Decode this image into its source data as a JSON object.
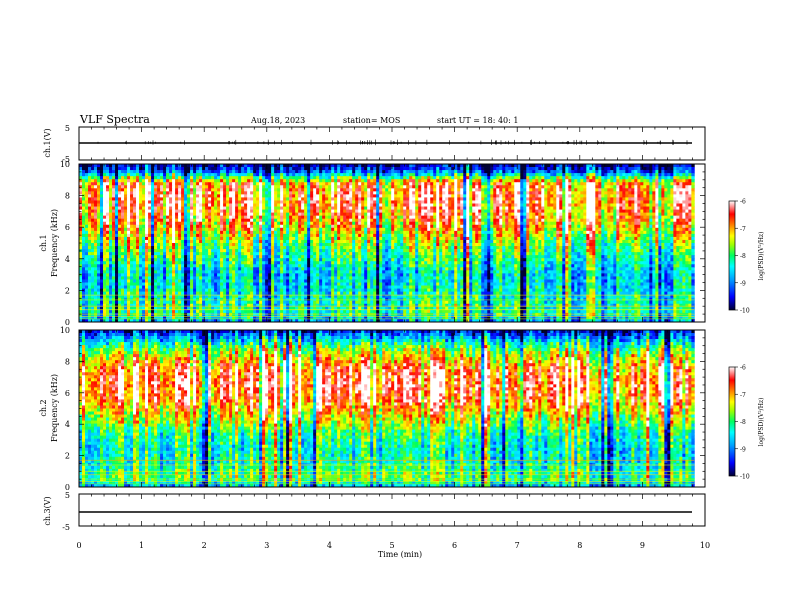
{
  "header": {
    "title": "VLF Spectra",
    "date": "Aug.18, 2023",
    "station": "station= MOS",
    "start": "start  UT  =   18: 40: 1"
  },
  "chart_data": [
    {
      "type": "line",
      "name": "ch1-waveform",
      "ylabel": "ch.1(V)",
      "ylim": [
        -5,
        5
      ],
      "yticks": [
        "5",
        "-5"
      ],
      "xlim": [
        0,
        10
      ],
      "baseline": 0
    },
    {
      "type": "heatmap",
      "name": "ch1-spectrogram",
      "ylabel": "ch.1\nFrequency (kHz)",
      "ylabel_line1": "ch.1",
      "ylabel_line2": "Frequency (kHz)",
      "ylim": [
        0,
        10
      ],
      "yticks": [
        "0",
        "2",
        "4",
        "6",
        "8",
        "10"
      ],
      "xlim": [
        0,
        9.83
      ],
      "band_profile": [
        [
          0.2,
          0.3
        ],
        [
          0.5,
          0.45
        ],
        [
          1.5,
          0.42
        ],
        [
          2.0,
          0.38
        ],
        [
          3.0,
          0.35
        ],
        [
          4.0,
          0.45
        ],
        [
          5.0,
          0.55
        ],
        [
          6.0,
          0.72
        ],
        [
          7.0,
          0.82
        ],
        [
          8.0,
          0.85
        ],
        [
          8.8,
          0.78
        ],
        [
          9.2,
          0.45
        ],
        [
          9.6,
          0.15
        ],
        [
          10,
          0.05
        ]
      ],
      "colorbar": {
        "label": "log(PSD)(V²/Hz)",
        "ticks": [
          "-6",
          "-7",
          "-8",
          "-9",
          "-10"
        ],
        "range": [
          -10,
          -6
        ]
      }
    },
    {
      "type": "heatmap",
      "name": "ch2-spectrogram",
      "ylabel": "ch.2\nFrequency (kHz)",
      "ylabel_line1": "ch.2",
      "ylabel_line2": "Frequency (kHz)",
      "ylim": [
        0,
        10
      ],
      "yticks": [
        "0",
        "2",
        "4",
        "6",
        "8",
        "10"
      ],
      "xlim": [
        0,
        9.83
      ],
      "band_profile": [
        [
          0.2,
          0.35
        ],
        [
          0.5,
          0.55
        ],
        [
          1.5,
          0.45
        ],
        [
          2.5,
          0.42
        ],
        [
          3.5,
          0.5
        ],
        [
          4.5,
          0.68
        ],
        [
          5.5,
          0.85
        ],
        [
          6.5,
          0.92
        ],
        [
          7.5,
          0.86
        ],
        [
          8.3,
          0.7
        ],
        [
          9.0,
          0.5
        ],
        [
          9.5,
          0.3
        ],
        [
          10,
          0.1
        ]
      ],
      "colorbar": {
        "label": "log(PSD)(V²/Hz)",
        "ticks": [
          "-6",
          "-7",
          "-8",
          "-9",
          "-10"
        ],
        "range": [
          -10,
          -6
        ]
      }
    },
    {
      "type": "line",
      "name": "ch3-waveform",
      "ylabel": "ch.3(V)",
      "ylim": [
        -5,
        5
      ],
      "yticks": [
        "5",
        "-5"
      ],
      "xlim": [
        0,
        10
      ],
      "baseline": 0
    }
  ],
  "xaxis": {
    "label": "Time  (min)",
    "range": [
      0,
      10
    ],
    "ticks": [
      "0",
      "1",
      "2",
      "3",
      "4",
      "5",
      "6",
      "7",
      "8",
      "9",
      "10"
    ]
  },
  "colors": {
    "scale": [
      "#000033",
      "#0000ff",
      "#00a0ff",
      "#00ffff",
      "#00ff60",
      "#a0ff00",
      "#ffff00",
      "#ff8000",
      "#ff0000",
      "#ffffff"
    ]
  }
}
